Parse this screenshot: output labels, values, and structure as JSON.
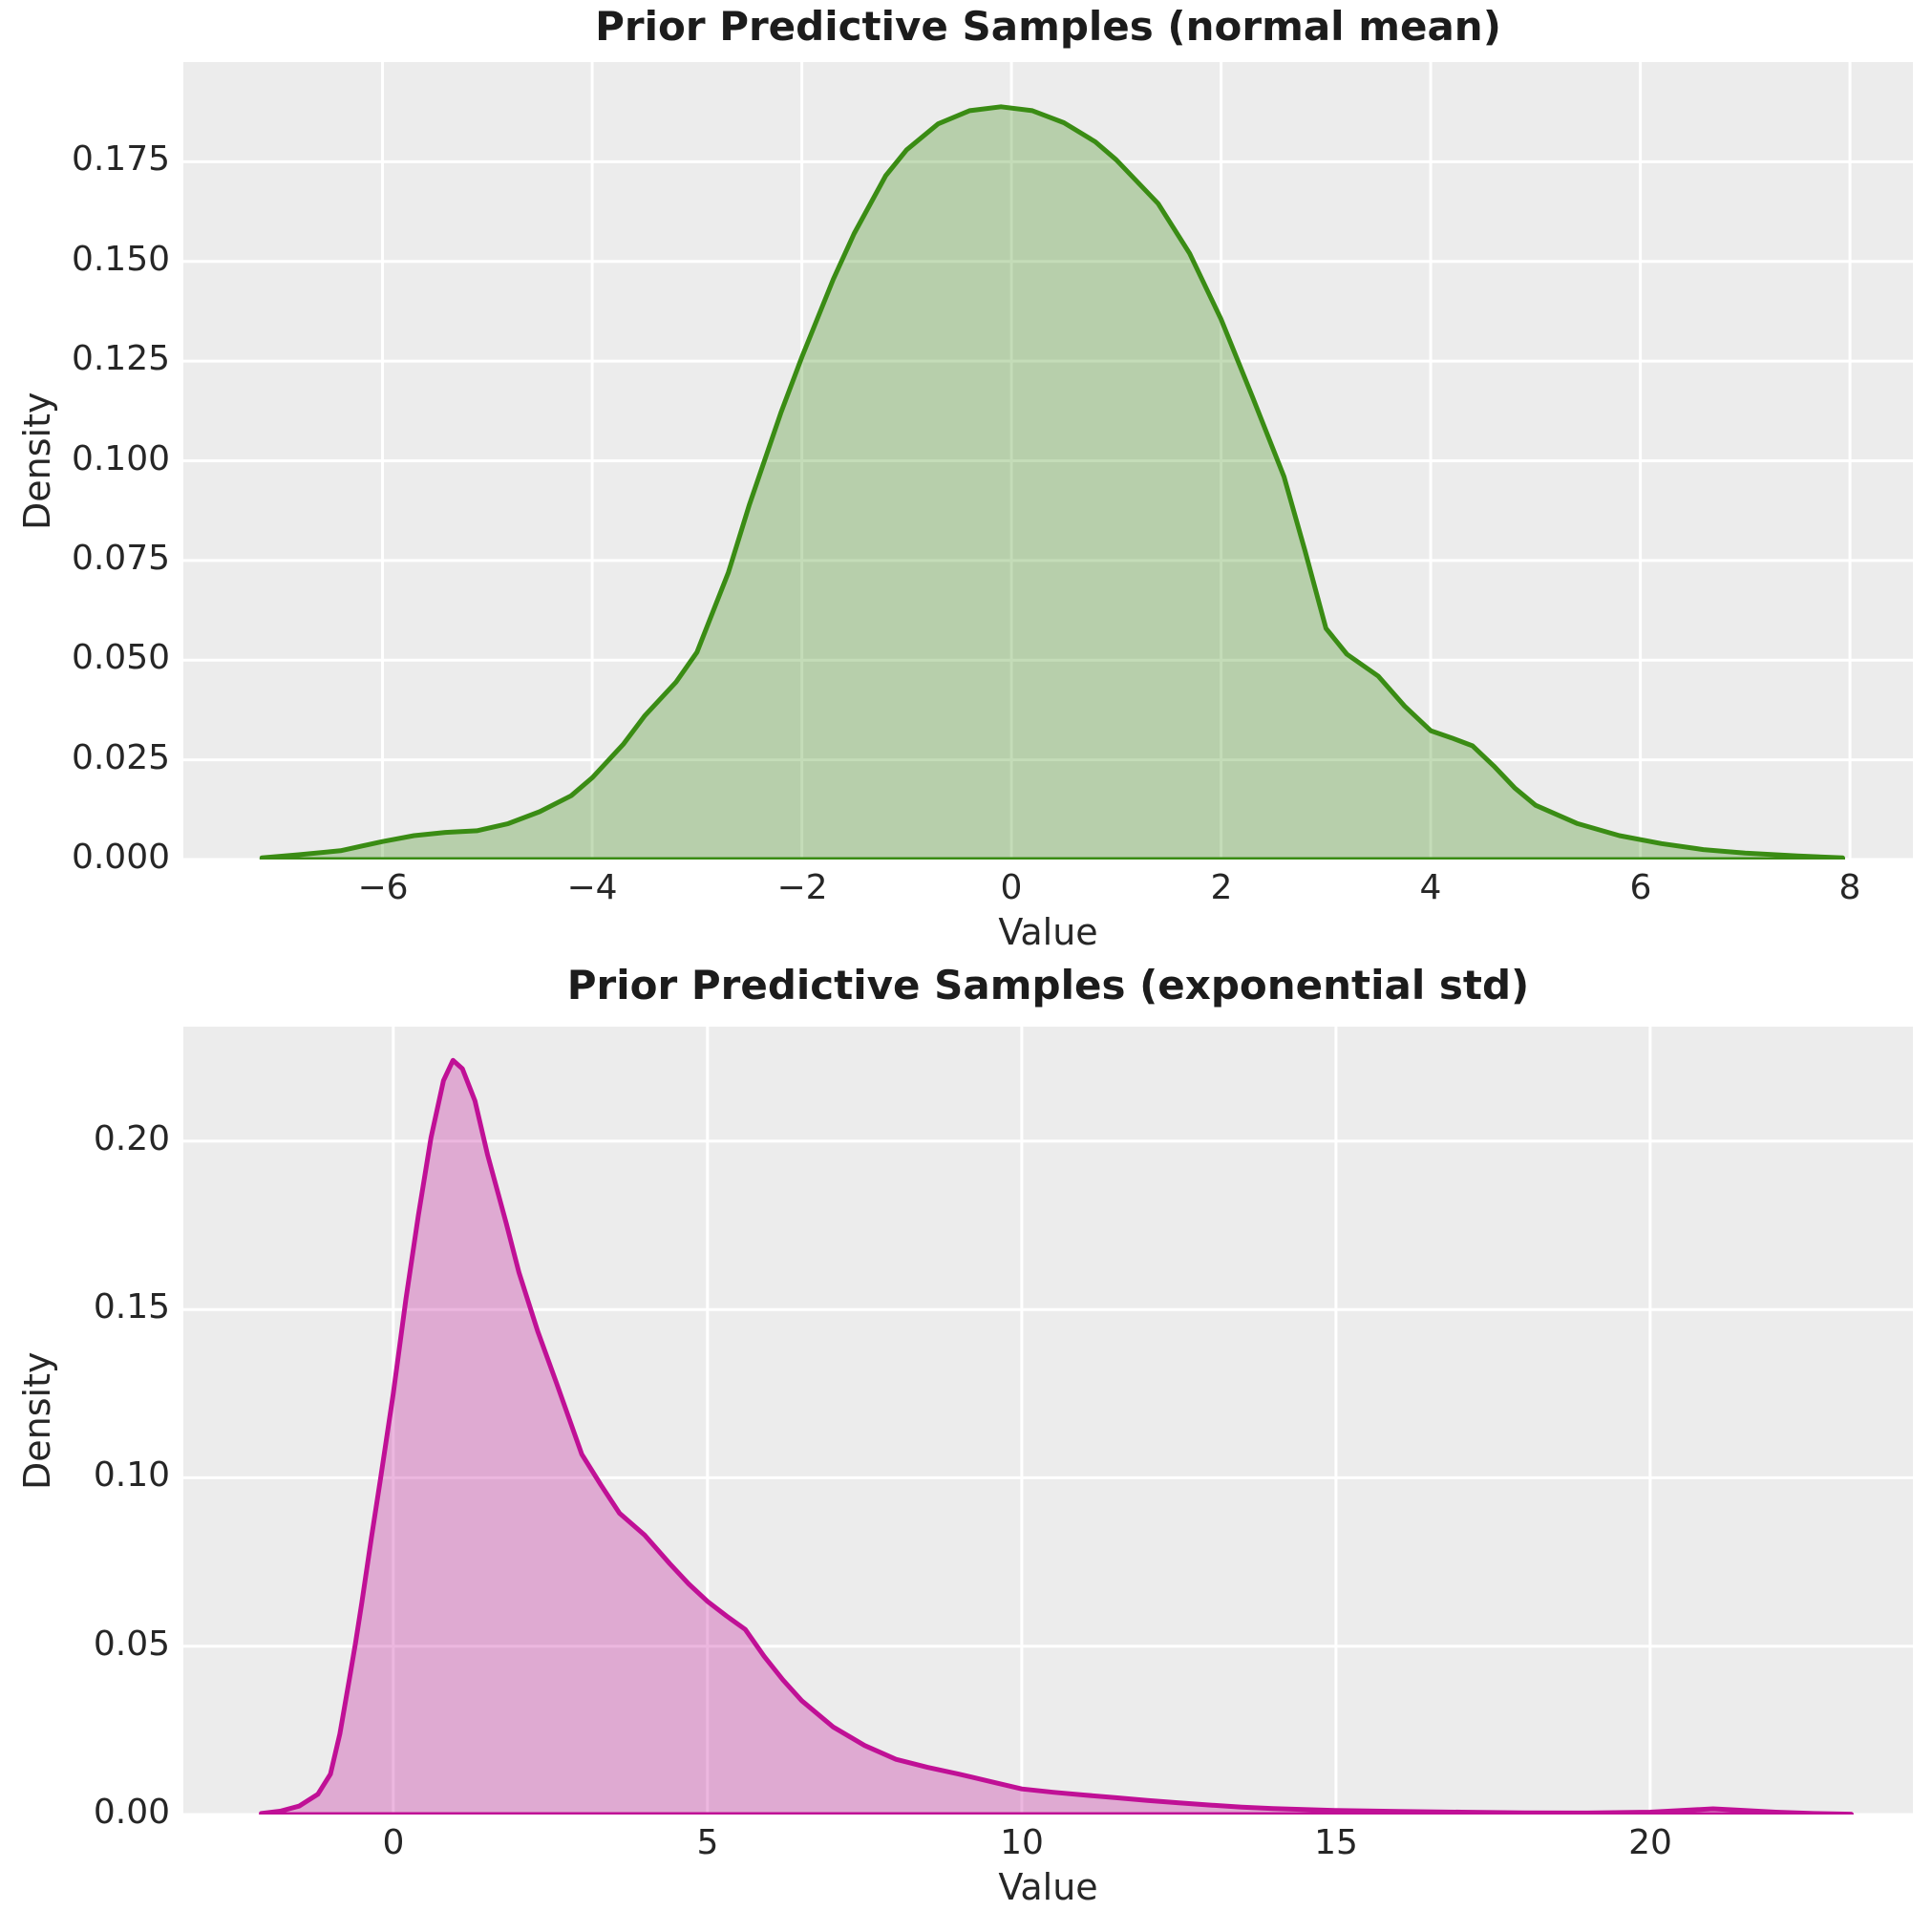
{
  "figure": {
    "background": "#ffffff",
    "plot_background": "#ececec",
    "grid_color": "#ffffff",
    "tick_text_color": "#262626",
    "title_text_color": "#1c1c1c"
  },
  "chart_data": [
    {
      "type": "area",
      "title": "Prior Predictive Samples (normal mean)",
      "xlabel": "Value",
      "ylabel": "Density",
      "xlim": [
        -7.9,
        8.6
      ],
      "ylim": [
        0,
        0.2
      ],
      "grid": true,
      "line_color": "#3a8c14",
      "fill_opacity": 0.3,
      "xticks": [
        {
          "v": -6,
          "label": "−6"
        },
        {
          "v": -4,
          "label": "−4"
        },
        {
          "v": -2,
          "label": "−2"
        },
        {
          "v": 0,
          "label": "0"
        },
        {
          "v": 2,
          "label": "2"
        },
        {
          "v": 4,
          "label": "4"
        },
        {
          "v": 6,
          "label": "6"
        },
        {
          "v": 8,
          "label": "8"
        }
      ],
      "yticks": [
        {
          "v": 0.0,
          "label": "0.000"
        },
        {
          "v": 0.025,
          "label": "0.025"
        },
        {
          "v": 0.05,
          "label": "0.050"
        },
        {
          "v": 0.075,
          "label": "0.075"
        },
        {
          "v": 0.1,
          "label": "0.100"
        },
        {
          "v": 0.125,
          "label": "0.125"
        },
        {
          "v": 0.15,
          "label": "0.150"
        },
        {
          "v": 0.175,
          "label": "0.175"
        }
      ],
      "curve": [
        [
          -7.15,
          0.0004
        ],
        [
          -6.8,
          0.0012
        ],
        [
          -6.4,
          0.0022
        ],
        [
          -6.0,
          0.0045
        ],
        [
          -5.7,
          0.006
        ],
        [
          -5.4,
          0.0068
        ],
        [
          -5.1,
          0.0072
        ],
        [
          -4.8,
          0.009
        ],
        [
          -4.5,
          0.012
        ],
        [
          -4.2,
          0.016
        ],
        [
          -4.0,
          0.0205
        ],
        [
          -3.7,
          0.029
        ],
        [
          -3.5,
          0.036
        ],
        [
          -3.2,
          0.0445
        ],
        [
          -3.0,
          0.052
        ],
        [
          -2.7,
          0.072
        ],
        [
          -2.5,
          0.089
        ],
        [
          -2.2,
          0.112
        ],
        [
          -2.0,
          0.126
        ],
        [
          -1.7,
          0.1455
        ],
        [
          -1.5,
          0.157
        ],
        [
          -1.2,
          0.1715
        ],
        [
          -1.0,
          0.178
        ],
        [
          -0.7,
          0.1845
        ],
        [
          -0.4,
          0.1878
        ],
        [
          -0.1,
          0.1888
        ],
        [
          0.2,
          0.1878
        ],
        [
          0.5,
          0.1848
        ],
        [
          0.8,
          0.18
        ],
        [
          1.0,
          0.1755
        ],
        [
          1.4,
          0.1645
        ],
        [
          1.7,
          0.152
        ],
        [
          2.0,
          0.1355
        ],
        [
          2.3,
          0.116
        ],
        [
          2.6,
          0.096
        ],
        [
          2.8,
          0.0775
        ],
        [
          3.0,
          0.058
        ],
        [
          3.2,
          0.0515
        ],
        [
          3.5,
          0.046
        ],
        [
          3.75,
          0.0385
        ],
        [
          4.0,
          0.0323
        ],
        [
          4.2,
          0.0305
        ],
        [
          4.4,
          0.0285
        ],
        [
          4.6,
          0.0235
        ],
        [
          4.8,
          0.018
        ],
        [
          5.0,
          0.0136
        ],
        [
          5.4,
          0.009
        ],
        [
          5.8,
          0.006
        ],
        [
          6.2,
          0.004
        ],
        [
          6.6,
          0.0025
        ],
        [
          7.0,
          0.0016
        ],
        [
          7.5,
          0.0009
        ],
        [
          7.93,
          0.0004
        ]
      ]
    },
    {
      "type": "area",
      "title": "Prior Predictive Samples (exponential std)",
      "xlabel": "Value",
      "ylabel": "Density",
      "xlim": [
        -3.34,
        24.18
      ],
      "ylim": [
        0,
        0.234
      ],
      "grid": true,
      "line_color": "#c01096",
      "fill_opacity": 0.3,
      "xticks": [
        {
          "v": 0,
          "label": "0"
        },
        {
          "v": 5,
          "label": "5"
        },
        {
          "v": 10,
          "label": "10"
        },
        {
          "v": 15,
          "label": "15"
        },
        {
          "v": 20,
          "label": "20"
        }
      ],
      "yticks": [
        {
          "v": 0.0,
          "label": "0.00"
        },
        {
          "v": 0.05,
          "label": "0.05"
        },
        {
          "v": 0.1,
          "label": "0.10"
        },
        {
          "v": 0.15,
          "label": "0.15"
        },
        {
          "v": 0.2,
          "label": "0.20"
        }
      ],
      "curve": [
        [
          -2.1,
          0.0003
        ],
        [
          -1.8,
          0.001
        ],
        [
          -1.5,
          0.0025
        ],
        [
          -1.2,
          0.006
        ],
        [
          -1.0,
          0.012
        ],
        [
          -0.85,
          0.024
        ],
        [
          -0.7,
          0.04
        ],
        [
          -0.6,
          0.051
        ],
        [
          -0.5,
          0.063
        ],
        [
          -0.35,
          0.082
        ],
        [
          -0.2,
          0.1
        ],
        [
          0.0,
          0.125
        ],
        [
          0.2,
          0.153
        ],
        [
          0.4,
          0.178
        ],
        [
          0.6,
          0.201
        ],
        [
          0.8,
          0.218
        ],
        [
          0.95,
          0.224
        ],
        [
          1.1,
          0.2215
        ],
        [
          1.3,
          0.212
        ],
        [
          1.5,
          0.196
        ],
        [
          1.8,
          0.1755
        ],
        [
          2.0,
          0.161
        ],
        [
          2.3,
          0.1435
        ],
        [
          2.6,
          0.128
        ],
        [
          3.0,
          0.107
        ],
        [
          3.3,
          0.098
        ],
        [
          3.6,
          0.0895
        ],
        [
          4.0,
          0.083
        ],
        [
          4.4,
          0.0745
        ],
        [
          4.7,
          0.0685
        ],
        [
          5.0,
          0.0633
        ],
        [
          5.3,
          0.059
        ],
        [
          5.6,
          0.055
        ],
        [
          5.9,
          0.047
        ],
        [
          6.2,
          0.04
        ],
        [
          6.5,
          0.0338
        ],
        [
          7.0,
          0.026
        ],
        [
          7.5,
          0.0205
        ],
        [
          8.0,
          0.0164
        ],
        [
          8.5,
          0.014
        ],
        [
          9.0,
          0.012
        ],
        [
          9.5,
          0.0098
        ],
        [
          10.0,
          0.0076
        ],
        [
          10.5,
          0.0066
        ],
        [
          11.0,
          0.0058
        ],
        [
          11.5,
          0.005
        ],
        [
          12.0,
          0.0042
        ],
        [
          12.5,
          0.0035
        ],
        [
          13.0,
          0.0028
        ],
        [
          13.5,
          0.0022
        ],
        [
          14.0,
          0.0018
        ],
        [
          15.0,
          0.0012
        ],
        [
          16.0,
          0.0009
        ],
        [
          17.0,
          0.0007
        ],
        [
          18.0,
          0.0005
        ],
        [
          19.0,
          0.00045
        ],
        [
          20.0,
          0.0007
        ],
        [
          20.6,
          0.0013
        ],
        [
          21.0,
          0.0017
        ],
        [
          21.4,
          0.0013
        ],
        [
          22.0,
          0.0007
        ],
        [
          22.6,
          0.0003
        ],
        [
          23.2,
          0.0001
        ]
      ]
    }
  ]
}
